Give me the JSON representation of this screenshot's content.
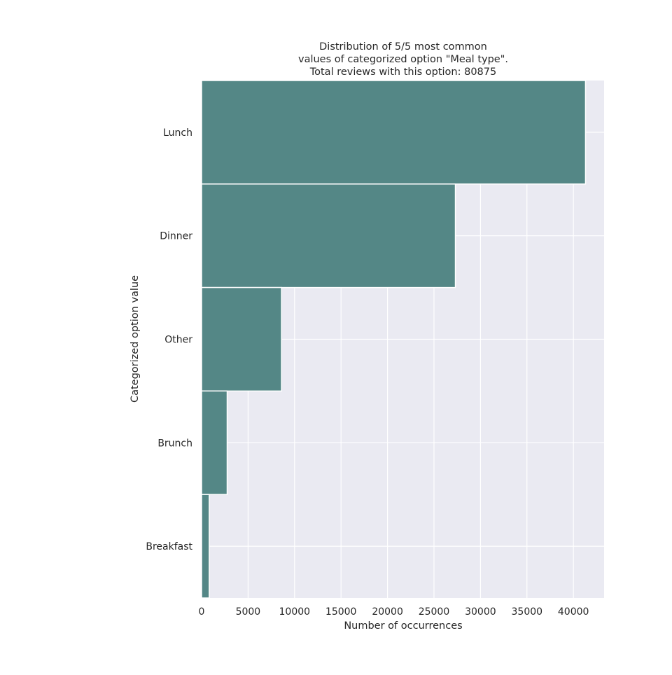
{
  "chart_data": {
    "type": "bar",
    "orientation": "horizontal",
    "title_lines": [
      "Distribution of 5/5 most common",
      "values of categorized option \"Meal type\".",
      "Total reviews with this option: 80875"
    ],
    "xlabel": "Number of occurrences",
    "ylabel": "Categorized option value",
    "categories": [
      "Lunch",
      "Dinner",
      "Other",
      "Brunch",
      "Breakfast"
    ],
    "values": [
      41300,
      27300,
      8600,
      2750,
      820
    ],
    "xlim": [
      0,
      43300
    ],
    "xticks": [
      0,
      5000,
      10000,
      15000,
      20000,
      25000,
      30000,
      35000,
      40000
    ],
    "xtick_labels": [
      "0",
      "5000",
      "10000",
      "15000",
      "20000",
      "25000",
      "30000",
      "35000",
      "40000"
    ],
    "grid": true,
    "colors": {
      "bar": "#548786",
      "plot_background": "#eaeaf2",
      "grid": "#ffffff"
    }
  }
}
